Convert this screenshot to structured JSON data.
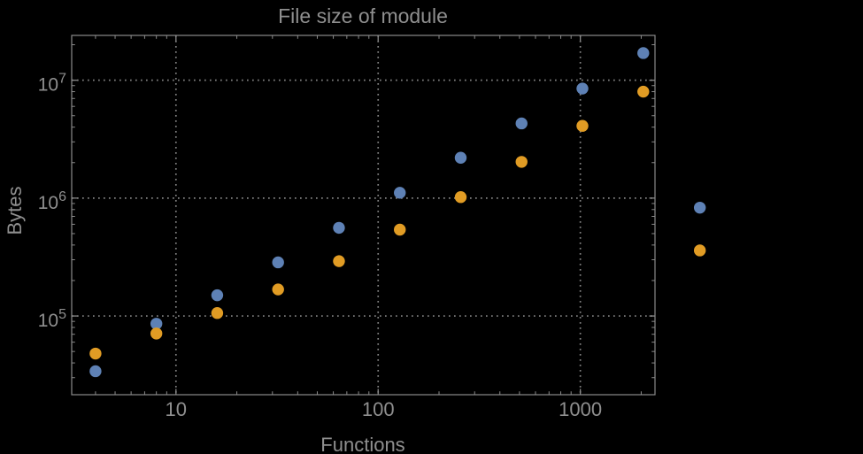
{
  "colors": {
    "background": "#000000",
    "text": "#8f8f8f",
    "frame": "#8a8a8a",
    "grid": "#828282",
    "series_blue": "#5e81b5",
    "series_orange": "#e19c24"
  },
  "chart_data": {
    "type": "scatter",
    "title": "File size of module",
    "xlabel": "Functions",
    "ylabel": "Bytes",
    "x_scale": "log",
    "y_scale": "log",
    "xlim": [
      3.05,
      2340
    ],
    "ylim": [
      21500,
      24000000
    ],
    "grid": "dotted lines at decade ticks, both axes",
    "legend": "none",
    "plot_range_clipping": false,
    "x_ticks": [
      {
        "value": 10,
        "label": "10"
      },
      {
        "value": 100,
        "label": "100"
      },
      {
        "value": 1000,
        "label": "1000"
      }
    ],
    "y_ticks": [
      {
        "value": 100000,
        "label": "10^5",
        "base": "10",
        "exp": "5"
      },
      {
        "value": 1000000,
        "label": "10^6",
        "base": "10",
        "exp": "6"
      },
      {
        "value": 10000000,
        "label": "10^7",
        "base": "10",
        "exp": "7"
      }
    ],
    "series": [
      {
        "name": "series-1-blue",
        "color": "#5e81b5",
        "points": [
          [
            4,
            34000
          ],
          [
            8,
            86000
          ],
          [
            16,
            150000
          ],
          [
            32,
            285000
          ],
          [
            64,
            560000
          ],
          [
            128,
            1110000
          ],
          [
            256,
            2200000
          ],
          [
            512,
            4300000
          ],
          [
            1024,
            8500000
          ],
          [
            2048,
            17000000
          ],
          [
            3900,
            830000
          ]
        ]
      },
      {
        "name": "series-2-orange",
        "color": "#e19c24",
        "points": [
          [
            4,
            48000
          ],
          [
            8,
            71000
          ],
          [
            16,
            106000
          ],
          [
            32,
            168000
          ],
          [
            64,
            292000
          ],
          [
            128,
            540000
          ],
          [
            256,
            1020000
          ],
          [
            512,
            2030000
          ],
          [
            1024,
            4100000
          ],
          [
            2048,
            8000000
          ],
          [
            3900,
            360000
          ]
        ]
      }
    ]
  }
}
